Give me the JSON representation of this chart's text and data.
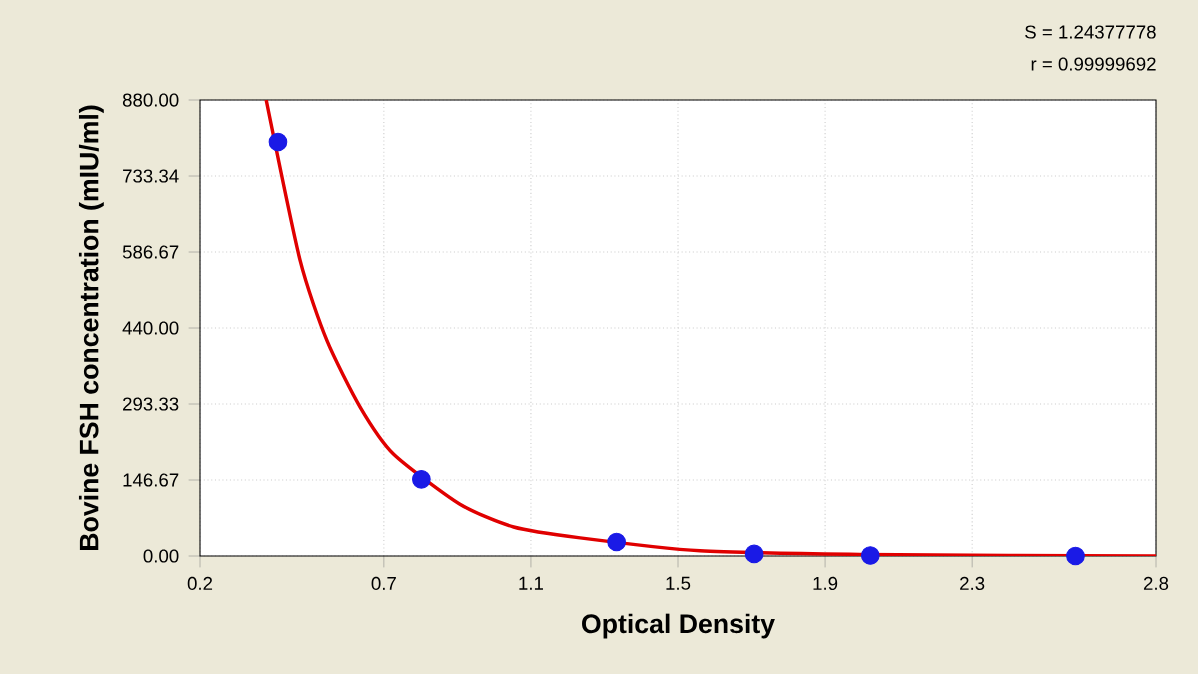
{
  "chart_data": {
    "type": "scatter",
    "xlabel": "Optical Density",
    "ylabel": "Bovine FSH concentration (mIU/ml)",
    "annotations": [
      "S = 1.24377778",
      "r = 0.99999692"
    ],
    "series": [
      {
        "color": "#1a1ae6",
        "marker": "circle",
        "x": [
          0.412,
          0.802,
          1.333,
          1.707,
          2.023,
          2.581
        ],
        "values": [
          799,
          148,
          27,
          4,
          1,
          0
        ]
      },
      {
        "type": "line",
        "color": "#e00000",
        "marker": "none",
        "line_style": "solid",
        "x": [
          0.38,
          0.472,
          0.545,
          0.635,
          0.726,
          0.907,
          1.053,
          1.234,
          1.56,
          2.0,
          2.4,
          2.8
        ],
        "values": [
          880,
          571,
          416,
          288,
          197,
          100,
          56,
          35,
          10,
          3,
          1,
          0
        ]
      }
    ],
    "xlim": [
      0.2,
      2.8
    ],
    "ylim": [
      0,
      880
    ],
    "xticks": [
      0.2,
      0.7,
      1.1,
      1.5,
      1.9,
      2.3,
      2.8
    ],
    "yticks": [
      {
        "value": 0,
        "label": "0.00"
      },
      {
        "value": 146.67,
        "label": "146.67"
      },
      {
        "value": 293.33,
        "label": "293.33"
      },
      {
        "value": 440,
        "label": "440.00"
      },
      {
        "value": 586.67,
        "label": "586.67"
      },
      {
        "value": 733.34,
        "label": "733.34"
      },
      {
        "value": 880,
        "label": "880.00"
      }
    ],
    "grid": true
  }
}
